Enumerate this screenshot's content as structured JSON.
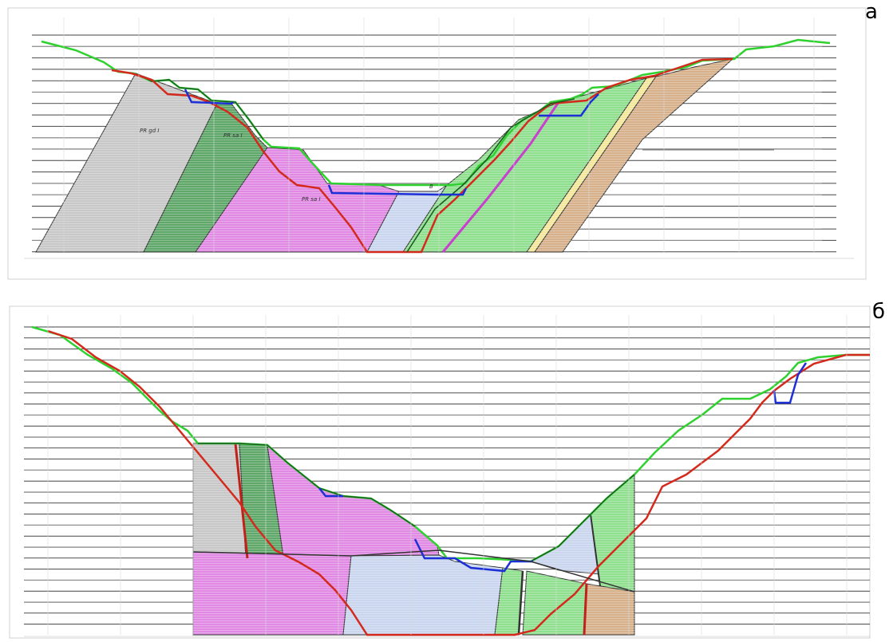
{
  "panels": [
    {
      "letter": "а",
      "labels": [
        "PR gd I",
        "PR sa I",
        "PR sa I",
        "B"
      ]
    },
    {
      "letter": "б",
      "labels": []
    }
  ],
  "colors": {
    "gray": "#c8c8c8",
    "dark_green": "#5fa86a",
    "magenta": "#e08ae4",
    "light_blue": "#c9d6ee",
    "light_green": "#8fdf8f",
    "tan": "#d7b08c",
    "yellow": "#f2e79a",
    "surface_green": "#2fd12f",
    "profile_red": "#d42a1e",
    "water_blue": "#1d2fd6"
  }
}
